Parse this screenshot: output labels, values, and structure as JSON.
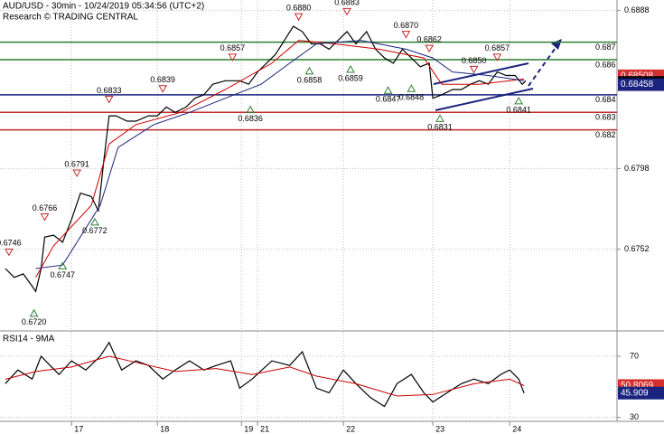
{
  "chart_data": [
    {
      "type": "line",
      "title": "AUD/USD - 30min - 10/24/2019 05:34:56 (UTC+2)",
      "subtitle": "Research © TRADING CENTRAL",
      "xlim": [
        0,
        345
      ],
      "ylim": [
        0.6706,
        0.6894
      ],
      "yticks": [
        0.6888,
        0.6798,
        0.6752
      ],
      "grid": true,
      "series": [
        {
          "color": "#000000",
          "x": [
            3,
            8,
            13,
            18,
            20,
            23,
            25,
            30,
            35,
            40,
            45,
            51,
            55,
            58,
            61,
            65,
            71,
            76,
            83,
            88,
            93,
            98,
            104,
            109,
            114,
            119,
            126,
            134,
            139,
            144,
            149,
            154,
            159,
            164,
            169,
            174,
            179,
            184,
            189,
            194,
            199,
            205,
            210,
            215,
            220,
            225,
            230,
            235,
            240,
            242,
            247,
            253,
            258,
            263,
            268,
            273,
            278,
            283,
            288,
            292,
            294
          ],
          "values": [
            0.6741,
            0.6736,
            0.6738,
            0.6731,
            0.6728,
            0.6741,
            0.6759,
            0.676,
            0.6756,
            0.6769,
            0.6784,
            0.6782,
            0.6774,
            0.6802,
            0.6828,
            0.6828,
            0.6825,
            0.6825,
            0.6828,
            0.6828,
            0.6833,
            0.683,
            0.6833,
            0.6838,
            0.684,
            0.6846,
            0.6848,
            0.6848,
            0.6846,
            0.6853,
            0.6858,
            0.6863,
            0.6871,
            0.6879,
            0.6876,
            0.6869,
            0.6869,
            0.6866,
            0.6871,
            0.6876,
            0.6869,
            0.6876,
            0.6866,
            0.6861,
            0.6858,
            0.6866,
            0.6861,
            0.6856,
            0.6858,
            0.6838,
            0.684,
            0.6843,
            0.6843,
            0.6846,
            0.6848,
            0.6846,
            0.6853,
            0.6851,
            0.6851,
            0.6846,
            0.6848
          ]
        },
        {
          "color": "#cc0000",
          "x": [
            20,
            30,
            51,
            61,
            76,
            101,
            126,
            152,
            167,
            187,
            212,
            237,
            247,
            268,
            293
          ],
          "values": [
            0.6736,
            0.6754,
            0.6777,
            0.6812,
            0.6823,
            0.683,
            0.6843,
            0.6858,
            0.6871,
            0.6869,
            0.6866,
            0.6861,
            0.6846,
            0.6846,
            0.6849
          ]
        },
        {
          "color": "#1a237e",
          "x": [
            20,
            35,
            56,
            66,
            86,
            106,
            126,
            146,
            162,
            177,
            202,
            227,
            242,
            253,
            273,
            293
          ],
          "values": [
            0.6741,
            0.6743,
            0.6777,
            0.681,
            0.6823,
            0.683,
            0.6838,
            0.6846,
            0.6858,
            0.6869,
            0.6871,
            0.6866,
            0.6861,
            0.6853,
            0.6851,
            0.6848
          ]
        }
      ],
      "levels": [
        {
          "value": 0.687,
          "color": "#2e7d32"
        },
        {
          "value": 0.686,
          "color": "#2e7d32"
        },
        {
          "value": 0.684,
          "color": "#1a237e"
        },
        {
          "value": 0.683,
          "color": "#c62828"
        },
        {
          "value": 0.682,
          "color": "#c62828"
        }
      ],
      "price_labels": [
        {
          "value": 0.68508,
          "color": "#d32f2f"
        },
        {
          "value": 0.6847,
          "color": "#000000"
        },
        {
          "value": 0.68458,
          "color": "#1a237e"
        }
      ],
      "annotations": [
        {
          "label": "0.6746",
          "value": 0.6746,
          "x": 5,
          "kind": "high"
        },
        {
          "label": "0.6720",
          "value": 0.672,
          "x": 19,
          "kind": "low"
        },
        {
          "label": "0.6766",
          "value": 0.6766,
          "x": 25,
          "kind": "high"
        },
        {
          "label": "0.6747",
          "value": 0.6747,
          "x": 35,
          "kind": "low"
        },
        {
          "label": "0.6791",
          "value": 0.6791,
          "x": 43,
          "kind": "high"
        },
        {
          "label": "0.6772",
          "value": 0.6772,
          "x": 53,
          "kind": "low"
        },
        {
          "label": "0.6833",
          "value": 0.6833,
          "x": 61,
          "kind": "high"
        },
        {
          "label": "0.6839",
          "value": 0.6839,
          "x": 91,
          "kind": "high"
        },
        {
          "label": "0.6836",
          "value": 0.6836,
          "x": 140,
          "kind": "low"
        },
        {
          "label": "0.6857",
          "value": 0.6857,
          "x": 130,
          "kind": "high"
        },
        {
          "label": "0.6858",
          "value": 0.6858,
          "x": 173,
          "kind": "low"
        },
        {
          "label": "0.6880",
          "value": 0.688,
          "x": 167,
          "kind": "high"
        },
        {
          "label": "0.6883",
          "value": 0.6883,
          "x": 194,
          "kind": "high"
        },
        {
          "label": "0.6859",
          "value": 0.6859,
          "x": 196,
          "kind": "low"
        },
        {
          "label": "0.6870",
          "value": 0.687,
          "x": 227,
          "kind": "high"
        },
        {
          "label": "0.6862",
          "value": 0.6862,
          "x": 240,
          "kind": "high"
        },
        {
          "label": "0.6847",
          "value": 0.6847,
          "x": 217,
          "kind": "low"
        },
        {
          "label": "0.6848",
          "value": 0.6848,
          "x": 230,
          "kind": "low"
        },
        {
          "label": "0.6831",
          "value": 0.6831,
          "x": 246,
          "kind": "low"
        },
        {
          "label": "0.6850",
          "value": 0.685,
          "x": 265,
          "kind": "high"
        },
        {
          "label": "0.6857",
          "value": 0.6857,
          "x": 278,
          "kind": "high"
        },
        {
          "label": "0.6841",
          "value": 0.6841,
          "x": 290,
          "kind": "low"
        }
      ]
    },
    {
      "type": "line",
      "title": "RSI14 - 9MA",
      "xlim": [
        0,
        345
      ],
      "xticks": [
        {
          "value": 40,
          "label": "17"
        },
        {
          "value": 88,
          "label": "18"
        },
        {
          "value": 135,
          "label": "19"
        },
        {
          "value": 144,
          "label": "21"
        },
        {
          "value": 192,
          "label": "22"
        },
        {
          "value": 242,
          "label": "23"
        },
        {
          "value": 285,
          "label": "24"
        }
      ],
      "ylim": [
        28,
        86
      ],
      "yticks": [
        70,
        30
      ],
      "grid": true,
      "series": [
        {
          "color": "#000000",
          "x": [
            3,
            10,
            18,
            23,
            28,
            33,
            40,
            48,
            56,
            61,
            68,
            76,
            83,
            91,
            98,
            106,
            114,
            121,
            129,
            134,
            141,
            152,
            162,
            169,
            177,
            184,
            192,
            199,
            207,
            215,
            222,
            230,
            237,
            242,
            250,
            258,
            265,
            273,
            280,
            285,
            290,
            293
          ],
          "values": [
            52.1,
            61,
            55.1,
            70,
            64,
            58.1,
            67,
            61,
            70,
            79,
            61,
            67,
            64,
            55.1,
            61,
            67,
            61,
            64,
            67,
            49.1,
            55.1,
            67,
            64,
            73,
            49.1,
            46.1,
            61,
            52.1,
            43.1,
            37.2,
            52.1,
            58.1,
            46.1,
            40.1,
            46.1,
            52.1,
            55.1,
            52.1,
            58.1,
            61,
            55.1,
            45.9
          ]
        },
        {
          "color": "#cc0000",
          "x": [
            3,
            20,
            40,
            61,
            76,
            98,
            121,
            141,
            162,
            177,
            199,
            222,
            242,
            265,
            285,
            293
          ],
          "values": [
            55,
            60,
            63,
            70,
            66,
            60,
            62,
            58,
            63,
            57,
            52,
            44,
            45,
            52,
            55,
            50.8069
          ]
        }
      ],
      "price_labels": [
        {
          "value": 50.8069,
          "color": "#d32f2f"
        },
        {
          "value": 45.909,
          "color": "#1a237e"
        }
      ]
    }
  ]
}
